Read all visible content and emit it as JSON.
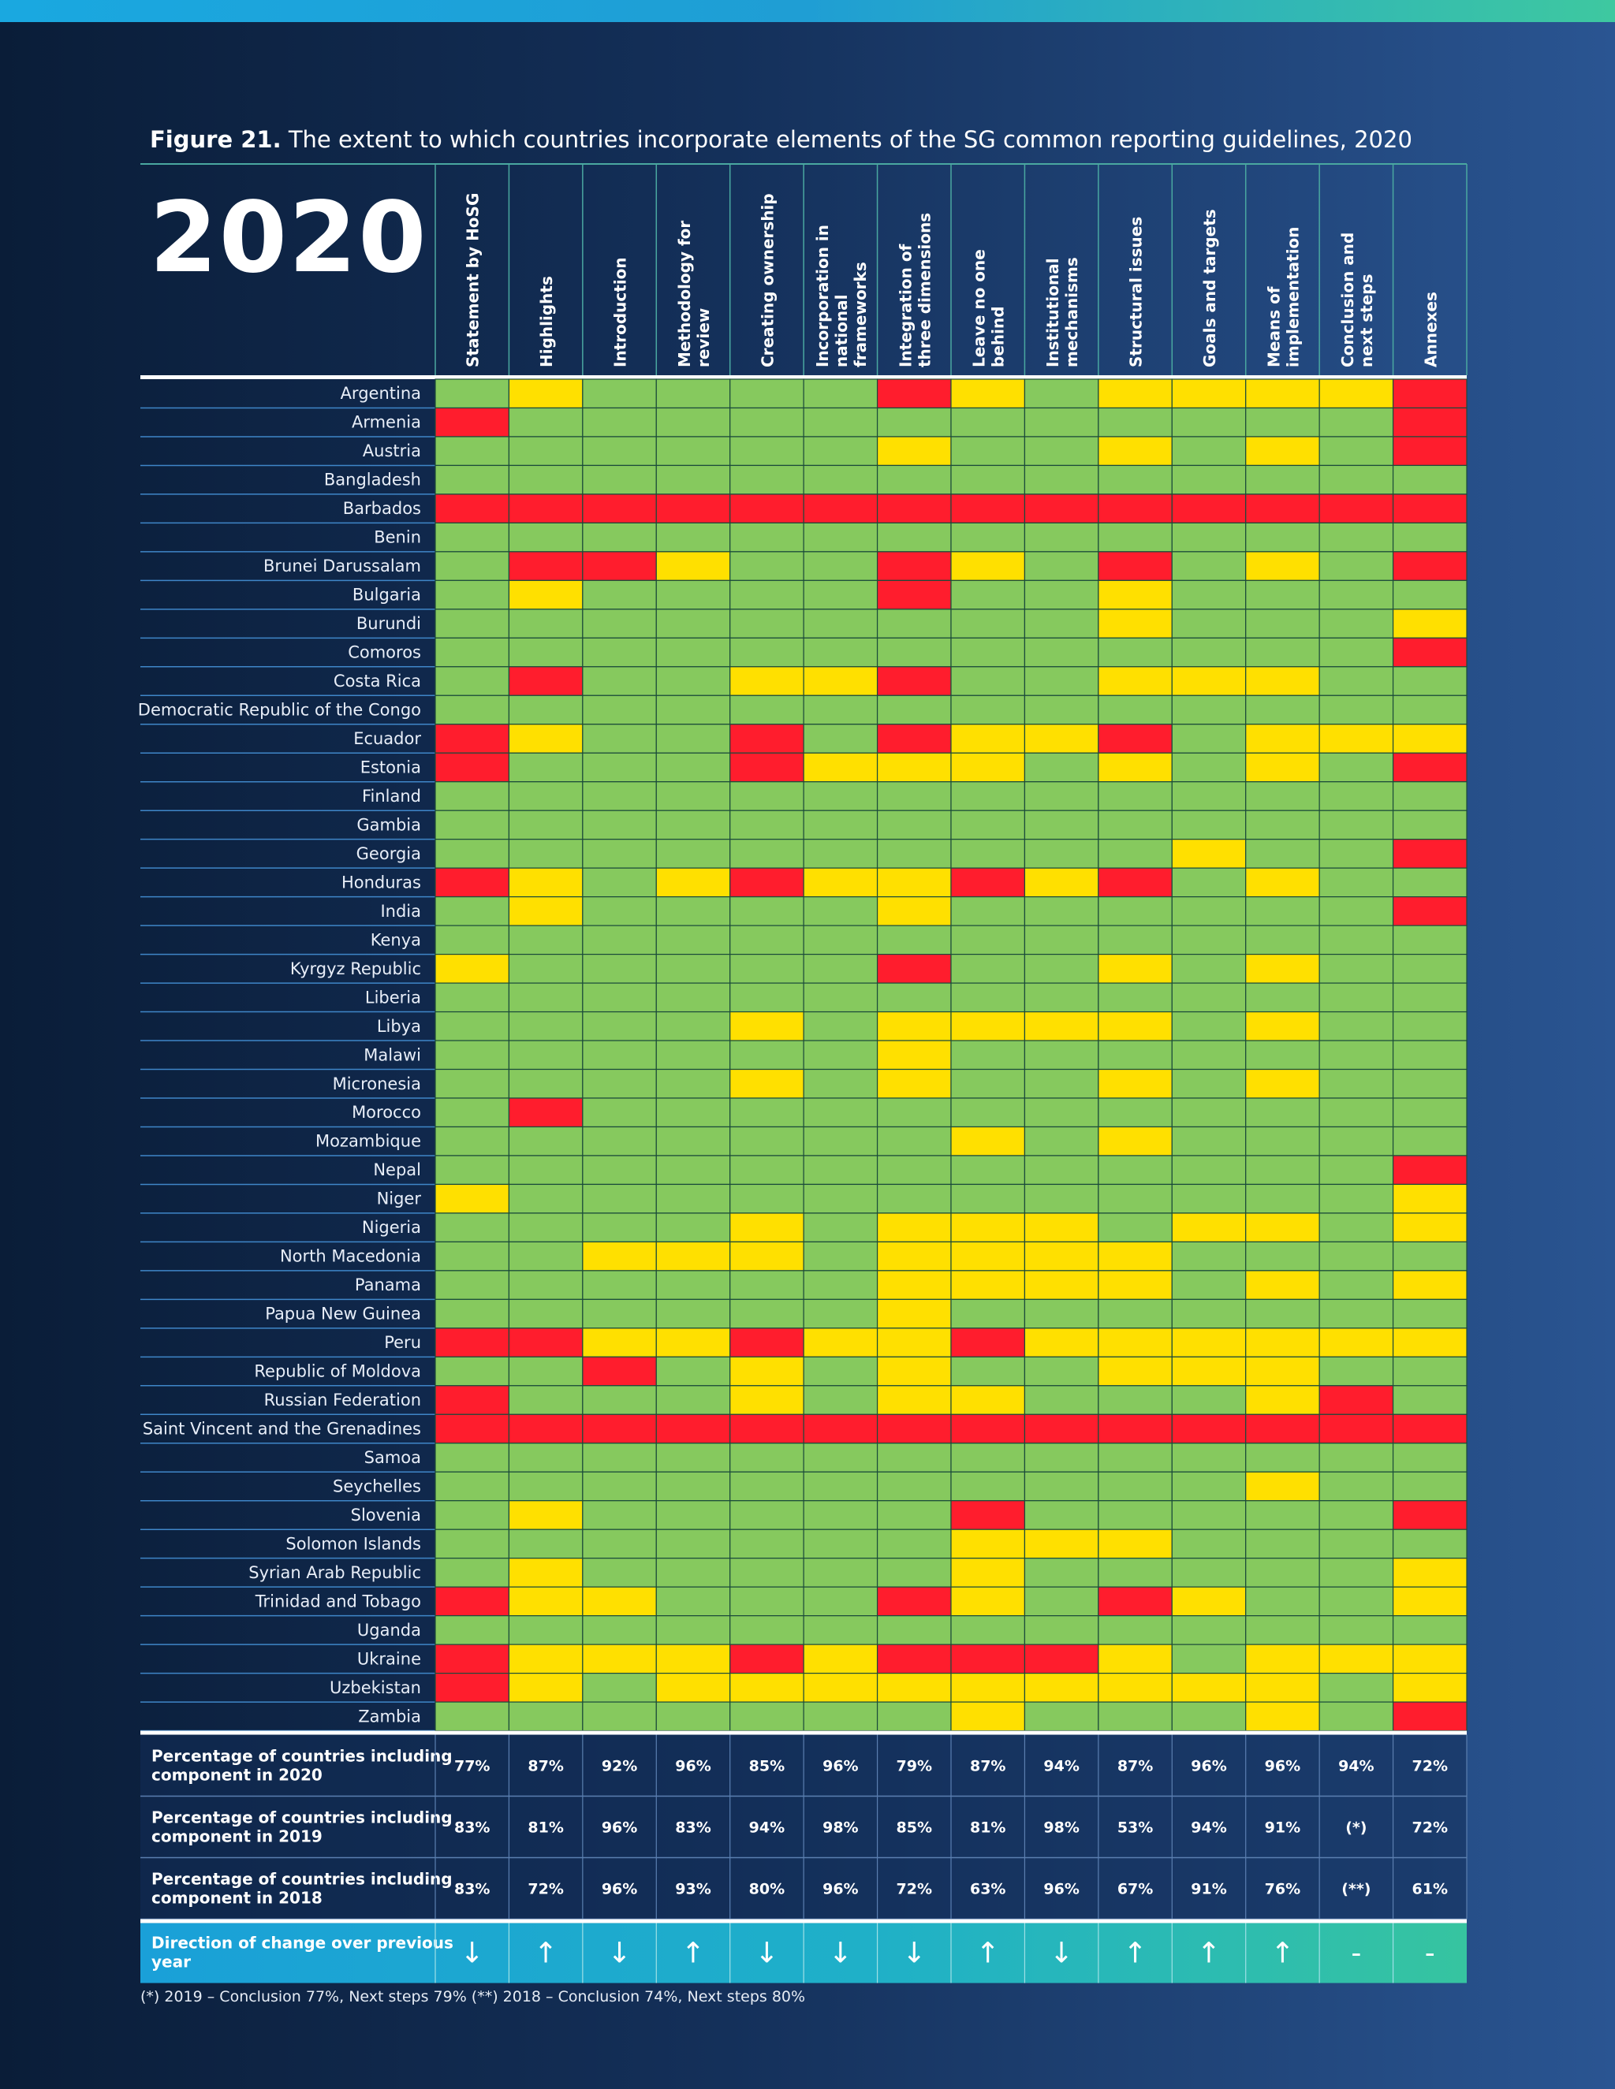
{
  "figure": {
    "label": "Figure 21.",
    "title": "The extent to which countries incorporate elements of the SG common reporting guidelines, 2020",
    "year_label": "2020"
  },
  "colors": {
    "green": "#86c95e",
    "yellow": "#ffe000",
    "red": "#ff1d2d",
    "grid": "#1a4a3a",
    "row_line": "#3f86c8"
  },
  "chart_data": {
    "type": "heatmap",
    "legend_note": "G = green, Y = yellow, R = red",
    "columns": [
      "Statement by HoSG",
      "Highlights",
      "Introduction",
      "Methodology for review",
      "Creating ownership",
      "Incorporation in national frameworks",
      "Integration of three dimensions",
      "Leave no one behind",
      "Institutional mechanisms",
      "Structural issues",
      "Goals and targets",
      "Means of implementation",
      "Conclusion and next steps",
      "Annexes"
    ],
    "rows": [
      {
        "country": "Argentina",
        "cells": "GYGGGGRYGYYYYR"
      },
      {
        "country": "Armenia",
        "cells": "RGGGGGGGGGGGGR"
      },
      {
        "country": "Austria",
        "cells": "GGGGGGYGGYGYGR"
      },
      {
        "country": "Bangladesh",
        "cells": "GGGGGGGGGGGGGG"
      },
      {
        "country": "Barbados",
        "cells": "RRRRRRRRRRRRRR"
      },
      {
        "country": "Benin",
        "cells": "GGGGGGGGGGGGGG"
      },
      {
        "country": "Brunei Darussalam",
        "cells": "GRRYGGRYGRGYGR"
      },
      {
        "country": "Bulgaria",
        "cells": "GYGGGGRGGYGGGG"
      },
      {
        "country": "Burundi",
        "cells": "GGGGGGGGGYGGGY"
      },
      {
        "country": "Comoros",
        "cells": "GGGGGGGGGGGGGR"
      },
      {
        "country": "Costa Rica",
        "cells": "GRGGYYRGGYYYGG"
      },
      {
        "country": "Democratic Republic of the Congo",
        "cells": "GGGGGGGGGGGGGG"
      },
      {
        "country": "Ecuador",
        "cells": "RYGGRGRYYRGYYY"
      },
      {
        "country": "Estonia",
        "cells": "RGGGRYYYGYGYGR"
      },
      {
        "country": "Finland",
        "cells": "GGGGGGGGGGGGGG"
      },
      {
        "country": "Gambia",
        "cells": "GGGGGGGGGGGGGG"
      },
      {
        "country": "Georgia",
        "cells": "GGGGGGGGGGYGGR"
      },
      {
        "country": "Honduras",
        "cells": "RYGYRYYRYRGYGG"
      },
      {
        "country": "India",
        "cells": "GYGGGGYGGGGGGR"
      },
      {
        "country": "Kenya",
        "cells": "GGGGGGGGGGGGGG"
      },
      {
        "country": "Kyrgyz Republic",
        "cells": "YGGGGGRGGYGYGG"
      },
      {
        "country": "Liberia",
        "cells": "GGGGGGGGGGGGGG"
      },
      {
        "country": "Libya",
        "cells": "GGGGYGYYYYGYGG"
      },
      {
        "country": "Malawi",
        "cells": "GGGGGGYGGGGGGG"
      },
      {
        "country": "Micronesia",
        "cells": "GGGGYGYGGYGYGG"
      },
      {
        "country": "Morocco",
        "cells": "GRGGGGGGGGGGGG"
      },
      {
        "country": "Mozambique",
        "cells": "GGGGGGGYGYGGGG"
      },
      {
        "country": "Nepal",
        "cells": "GGGGGGGGGGGGGR"
      },
      {
        "country": "Niger",
        "cells": "YGGGGGGGGGGGGY"
      },
      {
        "country": "Nigeria",
        "cells": "GGGGYGYYYGYYGY"
      },
      {
        "country": "North Macedonia",
        "cells": "GGYYYGYYYYGGGG"
      },
      {
        "country": "Panama",
        "cells": "GGGGGGYYYYGYGY"
      },
      {
        "country": "Papua New Guinea",
        "cells": "GGGGGGYGGGGGGG"
      },
      {
        "country": "Peru",
        "cells": "RRYYRYYRYYYYYY"
      },
      {
        "country": "Republic of Moldova",
        "cells": "GGRGYGYGGYYYGG"
      },
      {
        "country": "Russian Federation",
        "cells": "RGGGYGYYGGGYRG"
      },
      {
        "country": "Saint Vincent and the Grenadines",
        "cells": "RRRRRRRRRRRRRR"
      },
      {
        "country": "Samoa",
        "cells": "GGGGGGGGGGGGGG"
      },
      {
        "country": "Seychelles",
        "cells": "GGGGGGGGGGGYGG"
      },
      {
        "country": "Slovenia",
        "cells": "GYGGGGGRGGGGGR"
      },
      {
        "country": "Solomon Islands",
        "cells": "GGGGGGGYYYGGGG"
      },
      {
        "country": "Syrian Arab Republic",
        "cells": "GYGGGGGYGGGGGY"
      },
      {
        "country": "Trinidad and Tobago",
        "cells": "RYYGGGRYGRYGGY"
      },
      {
        "country": "Uganda",
        "cells": "GGGGGGGGGGGGGG"
      },
      {
        "country": "Ukraine",
        "cells": "RYYYRYRRRYGYYY"
      },
      {
        "country": "Uzbekistan",
        "cells": "RYGYYYYYYYYYGY"
      },
      {
        "country": "Zambia",
        "cells": "GGGGGGGYGGGYGR"
      }
    ],
    "summary": [
      {
        "label": "Percentage of countries including component in 2020",
        "values": [
          "77%",
          "87%",
          "92%",
          "96%",
          "85%",
          "96%",
          "79%",
          "87%",
          "94%",
          "87%",
          "96%",
          "96%",
          "94%",
          "72%"
        ]
      },
      {
        "label": "Percentage of countries including component in 2019",
        "values": [
          "83%",
          "81%",
          "96%",
          "83%",
          "94%",
          "98%",
          "85%",
          "81%",
          "98%",
          "53%",
          "94%",
          "91%",
          "(*)",
          "72%"
        ]
      },
      {
        "label": "Percentage of countries including component in 2018",
        "values": [
          "83%",
          "72%",
          "96%",
          "93%",
          "80%",
          "96%",
          "72%",
          "63%",
          "96%",
          "67%",
          "91%",
          "76%",
          "(**)",
          "61%"
        ]
      }
    ],
    "direction": {
      "label": "Direction of change over previous year",
      "values": [
        "↓",
        "↑",
        "↓",
        "↑",
        "↓",
        "↓",
        "↓",
        "↑",
        "↓",
        "↑",
        "↑",
        "↑",
        "-",
        "-"
      ]
    }
  },
  "footnote": "(*) 2019 – Conclusion 77%, Next steps 79%   (**) 2018 – Conclusion 74%, Next steps 80%"
}
